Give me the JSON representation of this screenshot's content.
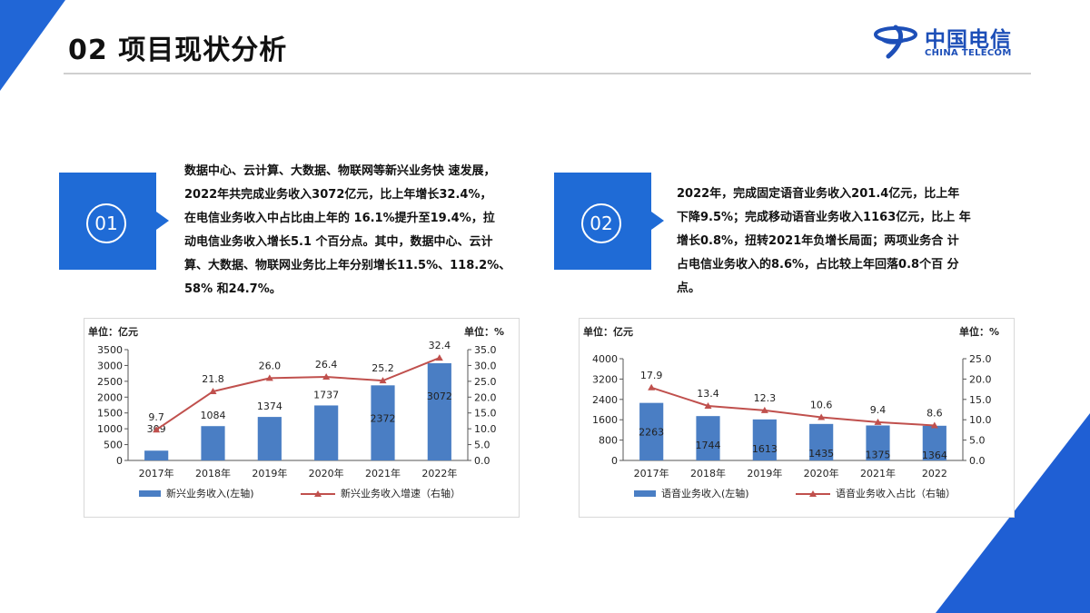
{
  "header": {
    "title": "02 项目现状分析",
    "logo_cn": "中国电信",
    "logo_en": "CHINA TELECOM"
  },
  "colors": {
    "accent": "#1f6bd6",
    "bar": "#4a7ec4",
    "line": "#c0504d"
  },
  "icons": [
    "china-telecom-logo-icon",
    "callout-arrow-icon"
  ],
  "blocks": [
    {
      "number": "01",
      "lines": [
        "数据中心、云计算、大数据、物联网等新兴业务快 速发展，",
        "2022年共完成业务收入3072亿元，比上年增长32.4%，",
        "在电信业务收入中占比由上年的 16.1%提升至19.4%，拉",
        "动电信业务收入增长5.1 个百分点。其中，数据中心、云计",
        "算、大数据、物联网业务比上年分别增长11.5%、118.2%、",
        "58% 和24.7%。"
      ]
    },
    {
      "number": "02",
      "lines": [
        "2022年，完成固定语音业务收入201.4亿元，比上年",
        "下降9.5%；完成移动语音业务收入1163亿元，比上 年",
        "增长0.8%，扭转2021年负增长局面；两项业务合 计",
        "占电信业务收入的8.6%，占比较上年回落0.8个百 分",
        "点。"
      ]
    }
  ],
  "chart_data": [
    {
      "type": "bar",
      "left_unit": "单位：亿元",
      "right_unit": "单位：%",
      "categories": [
        "2017年",
        "2018年",
        "2019年",
        "2020年",
        "2021年",
        "2022年"
      ],
      "left_ticks": [
        "3500",
        "3000",
        "2500",
        "2000",
        "1500",
        "1000",
        "500",
        "0"
      ],
      "right_ticks": [
        "35.0",
        "30.0",
        "25.0",
        "20.0",
        "15.0",
        "10.0",
        "5.0",
        "0.0"
      ],
      "ylim_left": [
        0,
        3500
      ],
      "ylim_right": [
        0,
        35
      ],
      "series": [
        {
          "name": "新兴业务收入(左轴)",
          "kind": "bar",
          "axis": "left",
          "values": [
            309,
            1084,
            1374,
            1737,
            2372,
            3072
          ]
        },
        {
          "name": "新兴业务收入增速（右轴）",
          "kind": "line",
          "axis": "right",
          "values": [
            9.7,
            21.8,
            26.0,
            26.4,
            25.2,
            32.4
          ]
        }
      ],
      "bar_labels": [
        "309",
        "1084",
        "1374",
        "1737",
        "2372",
        "3072"
      ],
      "line_labels": [
        "9.7",
        "21.8",
        "26.0",
        "26.4",
        "25.2",
        "32.4"
      ],
      "legend_placement": "bottom"
    },
    {
      "type": "bar",
      "left_unit": "单位：亿元",
      "right_unit": "单位：%",
      "categories": [
        "2017年",
        "2018年",
        "2019年",
        "2020年",
        "2021年",
        "2022"
      ],
      "left_ticks": [
        "4000",
        "3200",
        "2400",
        "1600",
        "800",
        "0"
      ],
      "right_ticks": [
        "25.0",
        "20.0",
        "15.0",
        "10.0",
        "5.0",
        "0.0"
      ],
      "ylim_left": [
        0,
        4000
      ],
      "ylim_right": [
        0,
        25
      ],
      "series": [
        {
          "name": "语音业务收入(左轴)",
          "kind": "bar",
          "axis": "left",
          "values": [
            2263,
            1744,
            1613,
            1435,
            1375,
            1364
          ]
        },
        {
          "name": "语音业务收入占比（右轴）",
          "kind": "line",
          "axis": "right",
          "values": [
            17.9,
            13.4,
            12.3,
            10.6,
            9.4,
            8.6
          ]
        }
      ],
      "bar_labels": [
        "2263",
        "1744",
        "1613",
        "1435",
        "1375",
        "1364"
      ],
      "line_labels": [
        "17.9",
        "13.4",
        "12.3",
        "10.6",
        "9.4",
        "8.6"
      ],
      "legend_placement": "bottom"
    }
  ]
}
